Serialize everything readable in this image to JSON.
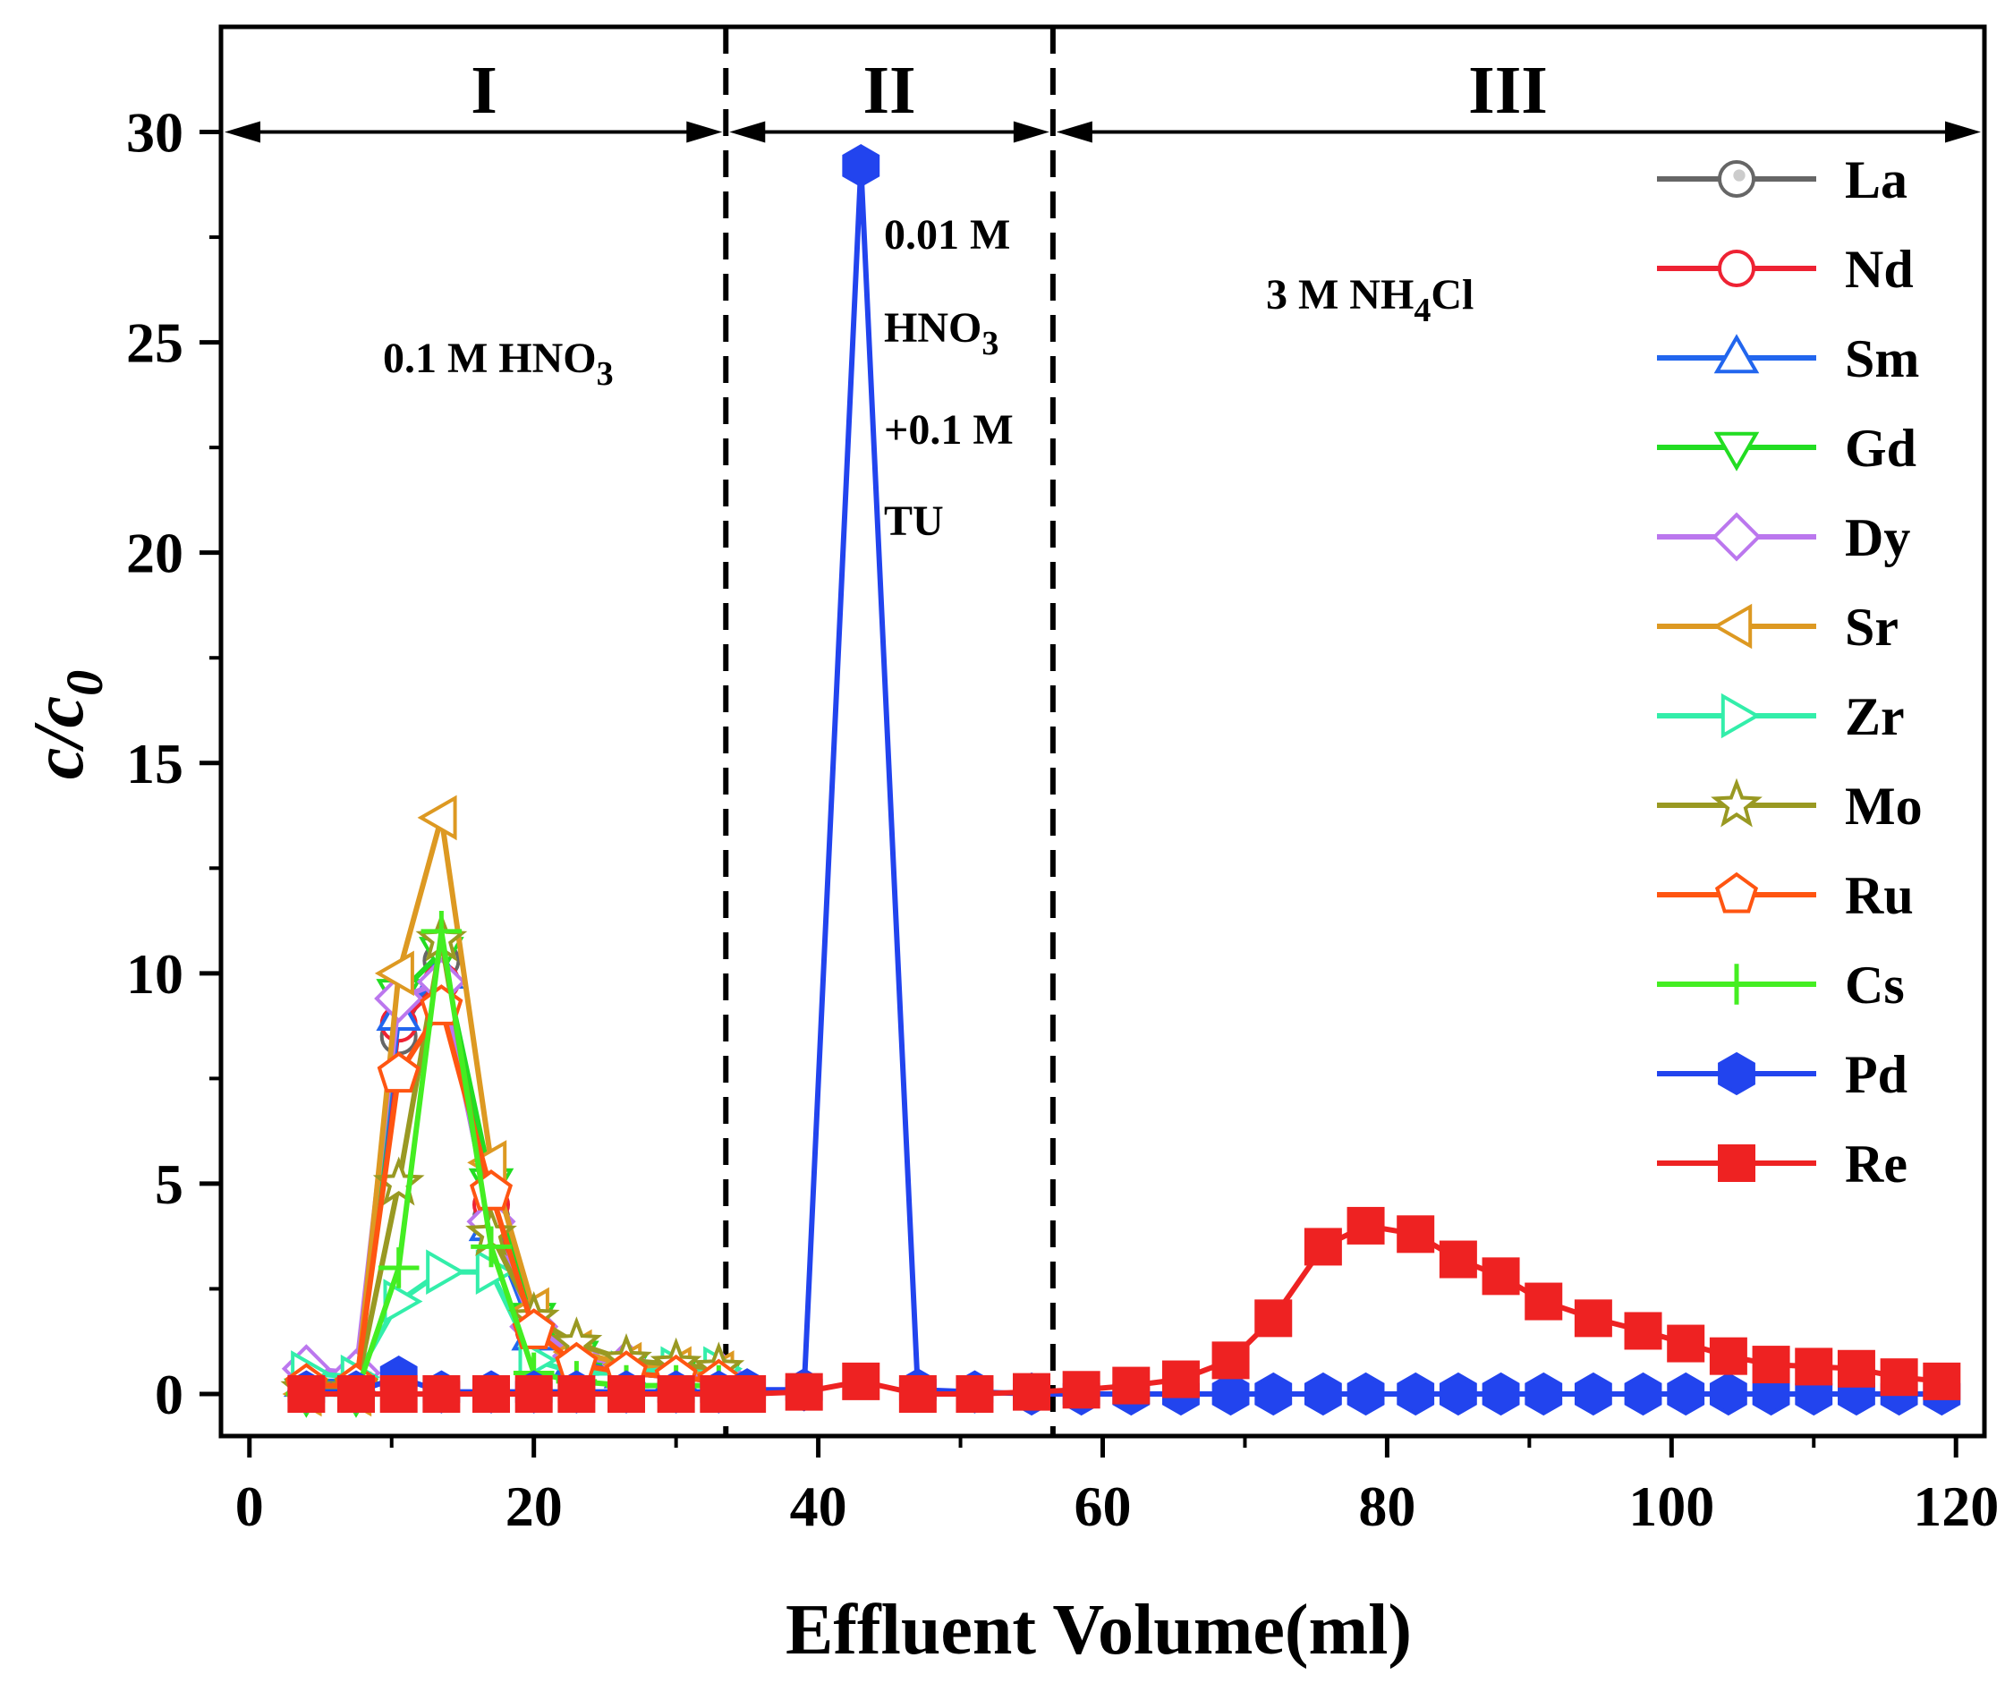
{
  "chart_data": {
    "type": "line",
    "title": "",
    "xlabel": "Effluent Volume(ml)",
    "ylabel": "c/c0",
    "ylabel_parts": {
      "main": "c/c",
      "sub": "0"
    },
    "xlim": [
      -2,
      122
    ],
    "ylim": [
      -1,
      32.5
    ],
    "xticks": [
      0,
      20,
      40,
      60,
      80,
      100,
      120
    ],
    "yticks": [
      0,
      5,
      10,
      15,
      20,
      25,
      30
    ],
    "grid": false,
    "legend_position": "right",
    "regions": {
      "arrow_y": 30,
      "boundaries": [
        33.5,
        56.5
      ],
      "labels": [
        {
          "text": "I",
          "x": 16.5
        },
        {
          "text": "II",
          "x": 45
        },
        {
          "text": "III",
          "x": 88.5
        }
      ]
    },
    "annotations": {
      "region1": {
        "main": "0.1 M HNO",
        "sub": "3"
      },
      "region2_line1": "0.01 M",
      "region2_line2": {
        "main": "HNO",
        "sub": "3"
      },
      "region2_line3": "+0.1 M",
      "region2_line4": "TU",
      "region3": {
        "before": "3 M NH",
        "sub": "4",
        "after": "Cl"
      }
    },
    "series": [
      {
        "name": "La",
        "color": "#666666",
        "marker": "circle-dot",
        "filled": false,
        "x": [
          4,
          7.5,
          10.5,
          13.5,
          17,
          20,
          23,
          26.5,
          30,
          33
        ],
        "y": [
          0.3,
          0.3,
          8.5,
          10.3,
          4.2,
          1.5,
          0.8,
          0.6,
          0.5,
          0.4
        ]
      },
      {
        "name": "Nd",
        "color": "#ee2233",
        "marker": "circle",
        "filled": false,
        "x": [
          4,
          7.5,
          10.5,
          13.5,
          17,
          20,
          23,
          26.5,
          30,
          33
        ],
        "y": [
          0.2,
          0.2,
          8.8,
          9.8,
          4.5,
          1.5,
          0.8,
          0.5,
          0.4,
          0.3
        ]
      },
      {
        "name": "Sm",
        "color": "#2266ee",
        "marker": "triangle-up",
        "filled": false,
        "x": [
          4,
          7.5,
          10.5,
          13.5,
          17,
          20,
          23,
          26.5,
          30,
          33
        ],
        "y": [
          0.3,
          0.3,
          9.0,
          10.0,
          4.0,
          1.4,
          0.8,
          0.5,
          0.4,
          0.3
        ]
      },
      {
        "name": "Gd",
        "color": "#22dd22",
        "marker": "triangle-down",
        "filled": false,
        "x": [
          4,
          7.5,
          10.5,
          13.5,
          17,
          20,
          23,
          26.5,
          30,
          33
        ],
        "y": [
          0.0,
          0.0,
          9.5,
          10.5,
          5.0,
          1.8,
          0.9,
          0.6,
          0.5,
          0.4
        ]
      },
      {
        "name": "Dy",
        "color": "#bb77ee",
        "marker": "diamond",
        "filled": false,
        "x": [
          4,
          7.5,
          10.5,
          13.5,
          17,
          20,
          23,
          26.5,
          30,
          33
        ],
        "y": [
          0.6,
          0.5,
          9.4,
          9.8,
          4.1,
          1.6,
          0.9,
          0.7,
          0.5,
          0.5
        ]
      },
      {
        "name": "Sr",
        "color": "#dd9922",
        "marker": "triangle-left",
        "filled": false,
        "x": [
          4,
          7.5,
          10.5,
          13.5,
          17,
          20,
          23,
          26.5,
          30,
          33
        ],
        "y": [
          0.0,
          0.0,
          10.0,
          13.7,
          5.5,
          2.0,
          1.0,
          0.7,
          0.6,
          0.5
        ]
      },
      {
        "name": "Zr",
        "color": "#33eeaa",
        "marker": "triangle-right",
        "filled": false,
        "x": [
          4,
          7.5,
          10.5,
          13.5,
          17,
          20,
          23,
          26.5,
          30,
          33
        ],
        "y": [
          0.5,
          0.4,
          2.2,
          2.9,
          2.9,
          0.8,
          0.5,
          0.5,
          0.6,
          0.6
        ]
      },
      {
        "name": "Mo",
        "color": "#999922",
        "marker": "star",
        "filled": false,
        "x": [
          4,
          7.5,
          10.5,
          13.5,
          17,
          20,
          23,
          26.5,
          30,
          33
        ],
        "y": [
          0.1,
          0.1,
          5.0,
          10.8,
          3.8,
          1.8,
          1.2,
          0.8,
          0.7,
          0.6
        ]
      },
      {
        "name": "Ru",
        "color": "#ff5511",
        "marker": "pentagon",
        "filled": false,
        "x": [
          4,
          7.5,
          10.5,
          13.5,
          17,
          20,
          23,
          26.5,
          30,
          33
        ],
        "y": [
          0.2,
          0.2,
          7.6,
          9.2,
          4.8,
          1.5,
          0.7,
          0.5,
          0.4,
          0.3
        ]
      },
      {
        "name": "Cs",
        "color": "#44ee22",
        "marker": "plus",
        "filled": false,
        "x": [
          4,
          7.5,
          10.5,
          13.5,
          17,
          20,
          23,
          26.5,
          30,
          33
        ],
        "y": [
          0.0,
          0.0,
          3.0,
          11.0,
          3.5,
          0.5,
          0.3,
          0.2,
          0.2,
          0.2
        ]
      },
      {
        "name": "Pd",
        "color": "#2244ee",
        "marker": "hexagon",
        "filled": true,
        "x": [
          4,
          7.5,
          10.5,
          13.5,
          17,
          20,
          23,
          26.5,
          30,
          33,
          35,
          39,
          43,
          47,
          51,
          55,
          58.5,
          62,
          65.5,
          69,
          72,
          75.5,
          78.5,
          82,
          85,
          88,
          91,
          94.5,
          98,
          101,
          104,
          107,
          110,
          113,
          116,
          119
        ],
        "y": [
          0.05,
          0.05,
          0.4,
          0.05,
          0.05,
          0.05,
          0.05,
          0.05,
          0.05,
          0.05,
          0.1,
          0.1,
          29.2,
          0.1,
          0.05,
          0.0,
          0.0,
          0.0,
          0.0,
          0.0,
          0.0,
          0.0,
          0.0,
          0.0,
          0.0,
          0.0,
          0.0,
          0.0,
          0.0,
          0.0,
          0.0,
          0.0,
          0.0,
          0.0,
          0.0,
          0.0
        ]
      },
      {
        "name": "Re",
        "color": "#ee2222",
        "marker": "square",
        "filled": true,
        "x": [
          4,
          7.5,
          10.5,
          13.5,
          17,
          20,
          23,
          26.5,
          30,
          33,
          35,
          39,
          43,
          47,
          51,
          55,
          58.5,
          62,
          65.5,
          69,
          72,
          75.5,
          78.5,
          82,
          85,
          88,
          91,
          94.5,
          98,
          101,
          104,
          107,
          110,
          113,
          116,
          119
        ],
        "y": [
          0.0,
          0.0,
          0.0,
          0.0,
          0.0,
          0.0,
          0.0,
          0.0,
          0.0,
          0.0,
          0.0,
          0.05,
          0.3,
          0.0,
          0.0,
          0.05,
          0.1,
          0.2,
          0.35,
          0.8,
          1.8,
          3.5,
          4.0,
          3.8,
          3.2,
          2.8,
          2.2,
          1.8,
          1.5,
          1.2,
          0.9,
          0.7,
          0.65,
          0.6,
          0.4,
          0.3
        ]
      }
    ]
  }
}
